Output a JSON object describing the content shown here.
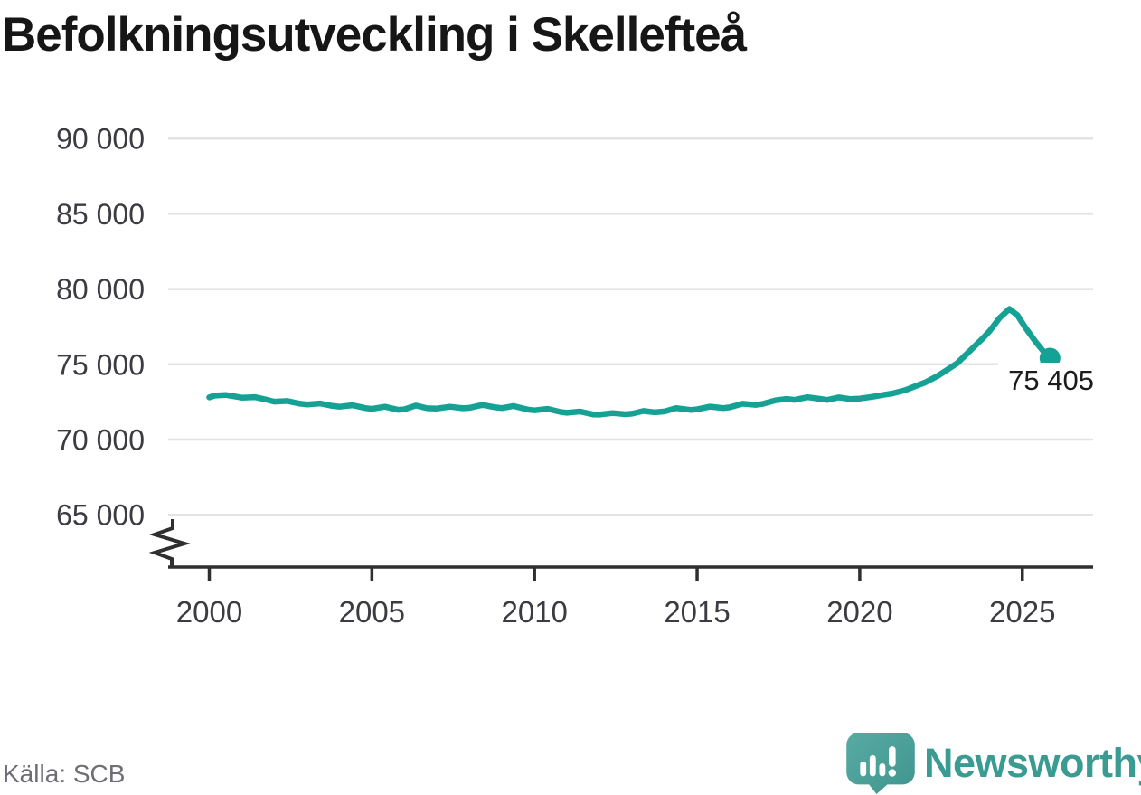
{
  "title": "Befolkningsutveckling i Skellefteå",
  "source": "Källa: SCB",
  "logo": {
    "text": "Newsworthy",
    "icon": "newsworthy-speech-bubble-bar-chart-icon"
  },
  "colors": {
    "line": "#15a294",
    "grid": "#e3e3e3",
    "axis": "#2f2f2f",
    "tick_text": "#3b3b42",
    "end_label_text": "#1c1c1c",
    "source_text": "#6d6d76",
    "logo_teal": "#3a9b93"
  },
  "chart_data": {
    "type": "line",
    "title": "Befolkningsutveckling i Skellefteå",
    "xlabel": "",
    "ylabel": "",
    "grid": true,
    "legend_position": "none",
    "x_axis": {
      "tick_values": [
        2000,
        2005,
        2010,
        2015,
        2020,
        2025
      ],
      "tick_labels": [
        "2000",
        "2005",
        "2010",
        "2015",
        "2020",
        "2025"
      ],
      "range": [
        1999.4,
        2027.2
      ]
    },
    "y_axis": {
      "tick_values": [
        90000,
        85000,
        80000,
        75000,
        70000,
        65000
      ],
      "tick_labels": [
        "90 000",
        "85 000",
        "80 000",
        "75 000",
        "70 000",
        "65 000"
      ],
      "axis_break_at_bottom": true,
      "range_shown": [
        63300,
        90200
      ]
    },
    "end_label": {
      "text": "75 405",
      "value": 75405,
      "year": 2025.85
    },
    "series": [
      {
        "color": "#15a294",
        "points": [
          [
            2000.0,
            72800
          ],
          [
            2000.17,
            72920
          ],
          [
            2000.5,
            72960
          ],
          [
            2000.8,
            72860
          ],
          [
            2001.0,
            72780
          ],
          [
            2001.4,
            72820
          ],
          [
            2001.7,
            72680
          ],
          [
            2002.0,
            72520
          ],
          [
            2002.4,
            72560
          ],
          [
            2002.8,
            72380
          ],
          [
            2003.0,
            72330
          ],
          [
            2003.4,
            72400
          ],
          [
            2003.8,
            72230
          ],
          [
            2004.0,
            72180
          ],
          [
            2004.4,
            72280
          ],
          [
            2004.8,
            72090
          ],
          [
            2005.0,
            72040
          ],
          [
            2005.4,
            72180
          ],
          [
            2005.8,
            71980
          ],
          [
            2006.0,
            72010
          ],
          [
            2006.35,
            72260
          ],
          [
            2006.7,
            72080
          ],
          [
            2007.0,
            72060
          ],
          [
            2007.4,
            72180
          ],
          [
            2007.8,
            72080
          ],
          [
            2008.0,
            72110
          ],
          [
            2008.4,
            72300
          ],
          [
            2008.8,
            72140
          ],
          [
            2009.0,
            72090
          ],
          [
            2009.35,
            72230
          ],
          [
            2009.8,
            71990
          ],
          [
            2010.0,
            71940
          ],
          [
            2010.4,
            72040
          ],
          [
            2010.8,
            71830
          ],
          [
            2011.0,
            71780
          ],
          [
            2011.4,
            71860
          ],
          [
            2011.8,
            71670
          ],
          [
            2012.0,
            71660
          ],
          [
            2012.4,
            71760
          ],
          [
            2012.8,
            71680
          ],
          [
            2013.0,
            71720
          ],
          [
            2013.35,
            71900
          ],
          [
            2013.7,
            71810
          ],
          [
            2014.0,
            71870
          ],
          [
            2014.35,
            72090
          ],
          [
            2014.8,
            71970
          ],
          [
            2015.0,
            72010
          ],
          [
            2015.4,
            72190
          ],
          [
            2015.8,
            72090
          ],
          [
            2016.0,
            72140
          ],
          [
            2016.4,
            72380
          ],
          [
            2016.8,
            72300
          ],
          [
            2017.0,
            72360
          ],
          [
            2017.4,
            72600
          ],
          [
            2017.75,
            72700
          ],
          [
            2018.0,
            72640
          ],
          [
            2018.4,
            72810
          ],
          [
            2018.8,
            72700
          ],
          [
            2019.0,
            72630
          ],
          [
            2019.35,
            72800
          ],
          [
            2019.7,
            72690
          ],
          [
            2020.0,
            72720
          ],
          [
            2020.4,
            72840
          ],
          [
            2020.8,
            72990
          ],
          [
            2021.0,
            73060
          ],
          [
            2021.4,
            73280
          ],
          [
            2021.8,
            73620
          ],
          [
            2022.0,
            73780
          ],
          [
            2022.4,
            74230
          ],
          [
            2022.8,
            74790
          ],
          [
            2023.0,
            75080
          ],
          [
            2023.4,
            75920
          ],
          [
            2023.8,
            76760
          ],
          [
            2024.0,
            77230
          ],
          [
            2024.3,
            78080
          ],
          [
            2024.6,
            78680
          ],
          [
            2024.85,
            78260
          ],
          [
            2025.1,
            77420
          ],
          [
            2025.4,
            76520
          ],
          [
            2025.65,
            75860
          ],
          [
            2025.85,
            75405
          ]
        ]
      }
    ]
  }
}
